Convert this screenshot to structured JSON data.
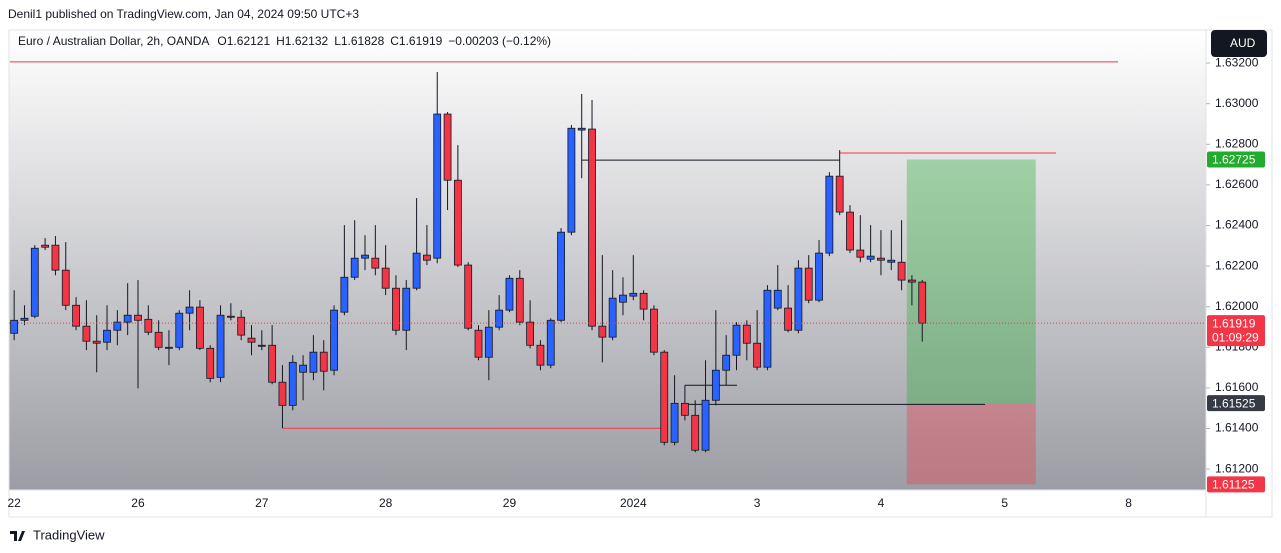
{
  "header": {
    "publisher": "Denil1 published on TradingView.com, Jan 04, 2024 09:50 UTC+3"
  },
  "chart_data": {
    "type": "candlestick",
    "title": "Euro / Australian Dollar, 2h, OANDA",
    "ohlc_legend": [
      "O1.62121",
      "H1.62132",
      "L1.61828",
      "C1.61919",
      "−0.00203 (−0.12%)"
    ],
    "currency": "AUD",
    "last_price_countdown": "01:09:29",
    "up_color": "#2962ff",
    "down_color": "#f23645",
    "categories": [
      "22",
      null,
      null,
      null,
      null,
      null,
      null,
      null,
      null,
      null,
      null,
      null,
      "26",
      null,
      null,
      null,
      null,
      null,
      null,
      null,
      null,
      null,
      null,
      null,
      "27",
      null,
      null,
      null,
      null,
      null,
      null,
      null,
      null,
      null,
      null,
      null,
      "28",
      null,
      null,
      null,
      null,
      null,
      null,
      null,
      null,
      null,
      null,
      null,
      "29",
      null,
      null,
      null,
      null,
      null,
      null,
      null,
      null,
      null,
      null,
      null,
      "2024",
      null,
      null,
      null,
      null,
      null,
      null,
      null,
      null,
      null,
      null,
      null,
      "3",
      null,
      null,
      null,
      null,
      null,
      null,
      null,
      null,
      null,
      null,
      null,
      "4",
      null,
      null,
      null,
      null,
      null,
      null,
      null,
      null,
      null,
      null,
      null,
      "5",
      null,
      null,
      null,
      null,
      null,
      null,
      null,
      null,
      null,
      null,
      null,
      "8",
      null,
      null,
      null,
      null,
      null,
      null,
      null
    ],
    "open": [
      1.61869,
      1.61933,
      1.61953,
      1.62303,
      1.62303,
      1.6218,
      1.62007,
      1.61904,
      1.6183,
      1.61825,
      1.61884,
      1.61924,
      1.61958,
      1.61938,
      1.61874,
      1.618,
      1.618,
      1.61968,
      1.61998,
      1.61795,
      1.61652,
      1.61953,
      1.61948,
      1.61845,
      1.6181,
      1.6181,
      1.61628,
      1.61514,
      1.61677,
      1.61677,
      1.61776,
      1.61687,
      1.61973,
      1.62145,
      1.62239,
      1.62239,
      1.6219,
      1.62091,
      1.61884,
      1.62091,
      1.62254,
      1.62239,
      1.62949,
      1.62623,
      1.62205,
      1.61884,
      1.61751,
      1.61899,
      1.61983,
      1.6214,
      1.61924,
      1.6181,
      1.61712,
      1.61933,
      1.62367,
      1.6287,
      1.62875,
      1.61904,
      1.6185,
      1.62022,
      1.62052,
      1.62066,
      1.61988,
      1.61776,
      1.61332,
      1.61524,
      1.61465,
      1.61293,
      1.61539,
      1.61687,
      1.61761,
      1.61909,
      1.6182,
      1.61702,
      1.61993,
      1.61993,
      1.61884,
      1.6219,
      1.62032,
      1.62264,
      1.62643,
      1.62466,
      1.62279,
      1.62234,
      1.62239,
      1.62219,
      1.62219,
      1.62131,
      1.62121,
      null,
      null,
      null,
      null,
      null,
      null,
      null,
      null,
      null,
      null,
      null,
      null,
      null,
      null,
      null,
      null,
      null,
      null,
      null,
      null,
      null,
      null,
      null,
      null,
      null,
      null,
      null
    ],
    "high": [
      1.62081,
      1.62007,
      1.62303,
      1.62338,
      1.62348,
      1.62318,
      1.62047,
      1.62032,
      1.61958,
      1.62007,
      1.61983,
      1.62116,
      1.62131,
      1.62007,
      1.61933,
      1.61884,
      1.61983,
      1.62081,
      1.62032,
      1.6181,
      1.62007,
      1.62017,
      1.61983,
      1.61909,
      1.61884,
      1.61909,
      1.61712,
      1.61761,
      1.61761,
      1.6186,
      1.61835,
      1.62007,
      1.62402,
      1.62426,
      1.62352,
      1.62402,
      1.62303,
      1.62155,
      1.62131,
      1.62535,
      1.62402,
      1.63156,
      1.62959,
      1.62796,
      1.62219,
      1.61909,
      1.61983,
      1.62057,
      1.62155,
      1.6218,
      1.62032,
      1.61835,
      1.61943,
      1.62387,
      1.62895,
      1.63048,
      1.63018,
      1.62254,
      1.6218,
      1.62145,
      1.62254,
      1.62081,
      1.62007,
      1.61786,
      1.61662,
      1.61613,
      1.61539,
      1.61736,
      1.61983,
      1.6186,
      1.61924,
      1.61933,
      1.61983,
      1.62106,
      1.62205,
      1.62106,
      1.62229,
      1.62254,
      1.62328,
      1.62663,
      1.62771,
      1.625,
      1.62451,
      1.62402,
      1.62377,
      1.62377,
      1.62426,
      1.62155,
      1.62132,
      null,
      null,
      null,
      null,
      null,
      null,
      null,
      null,
      null,
      null,
      null,
      null,
      null,
      null,
      null,
      null,
      null,
      null,
      null,
      null,
      null,
      null,
      null,
      null,
      null,
      null,
      null
    ],
    "low": [
      1.61835,
      1.61909,
      1.61943,
      1.62279,
      1.62155,
      1.61983,
      1.61884,
      1.61786,
      1.61677,
      1.61786,
      1.6181,
      1.6186,
      1.61598,
      1.6186,
      1.61786,
      1.61712,
      1.61786,
      1.61884,
      1.61786,
      1.61628,
      1.61628,
      1.61933,
      1.61835,
      1.61761,
      1.61786,
      1.61618,
      1.61401,
      1.6149,
      1.61539,
      1.61638,
      1.61588,
      1.61662,
      1.61958,
      1.62131,
      1.6218,
      1.62155,
      1.62057,
      1.6186,
      1.61786,
      1.62081,
      1.62205,
      1.62214,
      1.62476,
      1.62195,
      1.61884,
      1.61736,
      1.61638,
      1.61884,
      1.61973,
      1.61909,
      1.61795,
      1.61687,
      1.61697,
      1.61924,
      1.62352,
      1.62633,
      1.61884,
      1.61726,
      1.61835,
      1.61958,
      1.62032,
      1.61933,
      1.61761,
      1.61317,
      1.61317,
      1.6144,
      1.61283,
      1.61283,
      1.61514,
      1.61613,
      1.61687,
      1.61736,
      1.61687,
      1.61687,
      1.61983,
      1.61874,
      1.61869,
      1.62017,
      1.62022,
      1.62249,
      1.62451,
      1.62264,
      1.62219,
      1.62219,
      1.62155,
      1.6218,
      1.62081,
      1.62007,
      1.61828,
      null,
      null,
      null,
      null,
      null,
      null,
      null,
      null,
      null,
      null,
      null,
      null,
      null,
      null,
      null,
      null,
      null,
      null,
      null,
      null,
      null,
      null,
      null,
      null,
      null,
      null,
      null
    ],
    "close": [
      1.61933,
      1.61943,
      1.62288,
      1.62293,
      1.6218,
      1.62007,
      1.61904,
      1.6183,
      1.6182,
      1.61884,
      1.61924,
      1.61958,
      1.61933,
      1.61874,
      1.618,
      1.61795,
      1.61968,
      1.61998,
      1.61795,
      1.61647,
      1.61958,
      1.61948,
      1.6186,
      1.61825,
      1.61805,
      1.61628,
      1.61514,
      1.61726,
      1.61712,
      1.61776,
      1.61682,
      1.61983,
      1.62145,
      1.62239,
      1.62254,
      1.6219,
      1.62091,
      1.61884,
      1.62091,
      1.62264,
      1.62229,
      1.62949,
      1.62623,
      1.62205,
      1.61894,
      1.61751,
      1.61899,
      1.61983,
      1.6214,
      1.61924,
      1.6181,
      1.61712,
      1.61933,
      1.62367,
      1.62879,
      1.62879,
      1.61904,
      1.6185,
      1.62042,
      1.62057,
      1.62066,
      1.61988,
      1.61776,
      1.61332,
      1.61524,
      1.61465,
      1.61293,
      1.61539,
      1.61687,
      1.61761,
      1.61909,
      1.6182,
      1.61702,
      1.62081,
      1.62081,
      1.61884,
      1.6219,
      1.62032,
      1.62264,
      1.62643,
      1.62466,
      1.62279,
      1.62244,
      1.62249,
      1.62229,
      1.62229,
      1.62131,
      1.62121,
      1.61919,
      null,
      null,
      null,
      null,
      null,
      null,
      null,
      null,
      null,
      null,
      null,
      null,
      null,
      null,
      null,
      null,
      null,
      null,
      null,
      null,
      null,
      null,
      null,
      null,
      null,
      null,
      null
    ],
    "ylim": [
      1.61097,
      1.63363
    ],
    "yticks": [
      {
        "value": 1.632,
        "label": "1.63200"
      },
      {
        "value": 1.63,
        "label": "1.63000"
      },
      {
        "value": 1.628,
        "label": "1.62800"
      },
      {
        "value": 1.626,
        "label": "1.62600"
      },
      {
        "value": 1.624,
        "label": "1.62400"
      },
      {
        "value": 1.622,
        "label": "1.62200"
      },
      {
        "value": 1.62,
        "label": "1.62000"
      },
      {
        "value": 1.618,
        "label": "1.61800"
      },
      {
        "value": 1.616,
        "label": "1.61600"
      },
      {
        "value": 1.614,
        "label": "1.61400"
      },
      {
        "value": 1.612,
        "label": "1.61200"
      }
    ],
    "position": {
      "target": 1.62725,
      "entry": 1.61525,
      "stop": 1.61125,
      "profit_color": "#22ab2e",
      "loss_color": "#f23645"
    },
    "levels": [
      {
        "price": 1.63206,
        "color": "#f23645"
      },
      {
        "price": 1.62722,
        "color": "#131722"
      },
      {
        "price": 1.62757,
        "color": "#f23645"
      },
      {
        "price": 1.61401,
        "color": "#f23645"
      },
      {
        "price": 1.61613,
        "color": "#131722"
      },
      {
        "price": 1.61519,
        "color": "#131722"
      }
    ]
  },
  "footer": {
    "brand": "TradingView"
  }
}
